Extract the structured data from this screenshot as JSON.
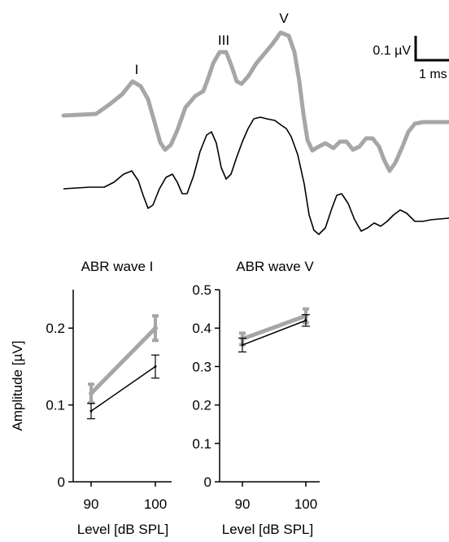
{
  "traces": {
    "peak_labels": [
      "I",
      "III",
      "V"
    ],
    "scale_bar": {
      "amplitude_label": "0.1 µV",
      "time_label": "1 ms"
    },
    "colors": {
      "gray": "#a6a6a6",
      "black": "#000000"
    }
  },
  "chart_data": [
    {
      "type": "line",
      "title": "ABR wave I",
      "xlabel": "Level [dB SPL]",
      "ylabel": "Amplitude [µV]",
      "x": [
        90,
        100
      ],
      "xticks": [
        "90",
        "100"
      ],
      "yticks": [
        "0",
        "0.1",
        "0.2"
      ],
      "ylim": [
        0,
        0.25
      ],
      "series": [
        {
          "color": "#a6a6a6",
          "values": [
            0.115,
            0.2
          ],
          "err": [
            0.012,
            0.016
          ]
        },
        {
          "color": "#000000",
          "values": [
            0.092,
            0.15
          ],
          "err": [
            0.01,
            0.015
          ]
        }
      ]
    },
    {
      "type": "line",
      "title": "ABR wave V",
      "xlabel": "Level [dB SPL]",
      "ylabel": "",
      "x": [
        90,
        100
      ],
      "xticks": [
        "90",
        "100"
      ],
      "yticks": [
        "0",
        "0.1",
        "0.2",
        "0.3",
        "0.4",
        "0.5"
      ],
      "ylim": [
        0,
        0.5
      ],
      "series": [
        {
          "color": "#a6a6a6",
          "values": [
            0.372,
            0.432
          ],
          "err": [
            0.015,
            0.018
          ]
        },
        {
          "color": "#000000",
          "values": [
            0.356,
            0.42
          ],
          "err": [
            0.018,
            0.015
          ]
        }
      ]
    }
  ]
}
